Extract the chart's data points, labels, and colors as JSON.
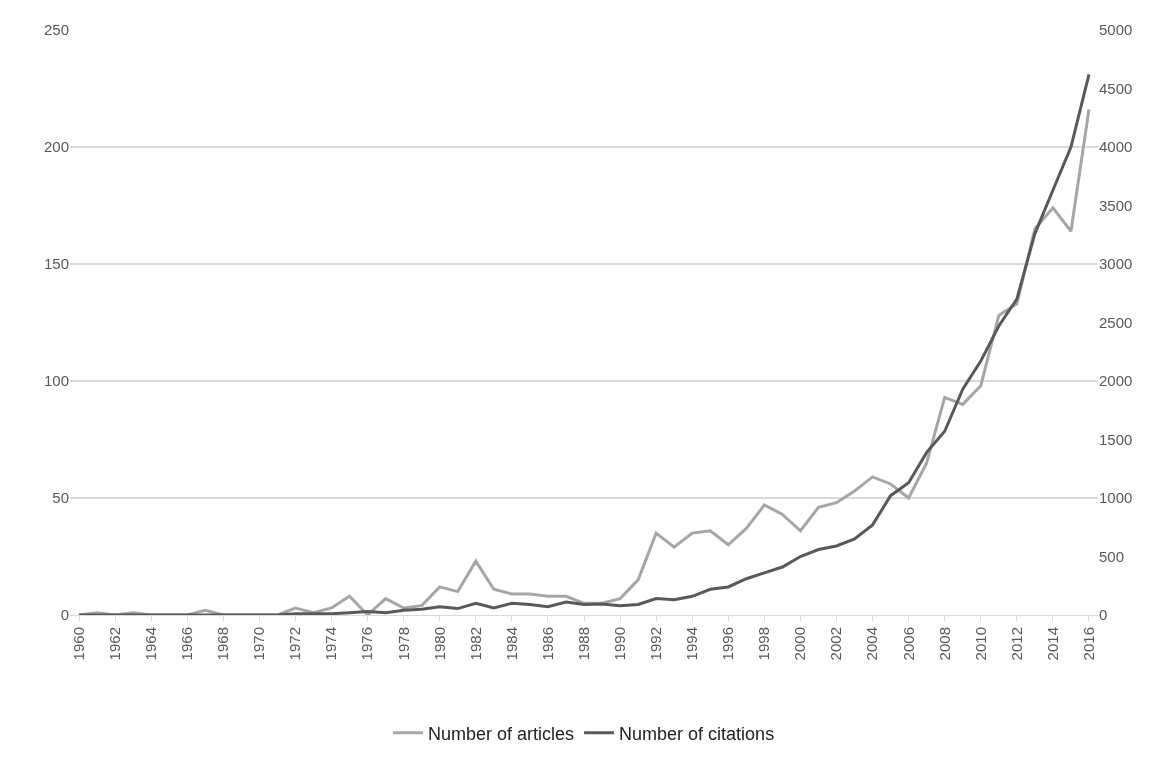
{
  "chart_data": {
    "type": "line",
    "x": [
      1960,
      1961,
      1962,
      1963,
      1964,
      1965,
      1966,
      1967,
      1968,
      1969,
      1970,
      1971,
      1972,
      1973,
      1974,
      1975,
      1976,
      1977,
      1978,
      1979,
      1980,
      1981,
      1982,
      1983,
      1984,
      1985,
      1986,
      1987,
      1988,
      1989,
      1990,
      1991,
      1992,
      1993,
      1994,
      1995,
      1996,
      1997,
      1998,
      1999,
      2000,
      2001,
      2002,
      2003,
      2004,
      2005,
      2006,
      2007,
      2008,
      2009,
      2010,
      2011,
      2012,
      2013,
      2014,
      2015,
      2016
    ],
    "series": [
      {
        "name": "Number of articles",
        "color": "#a6a6a6",
        "values": [
          0,
          1,
          0,
          1,
          0,
          0,
          0,
          2,
          0,
          0,
          0,
          0,
          3,
          1,
          3,
          8,
          0,
          7,
          3,
          4,
          12,
          10,
          23,
          11,
          9,
          9,
          8,
          8,
          5,
          5,
          7,
          15,
          35,
          29,
          35,
          36,
          30,
          37,
          47,
          43,
          36,
          46,
          48,
          53,
          59,
          56,
          50,
          65,
          93,
          90,
          98,
          128,
          133,
          165,
          174,
          164,
          216
        ]
      },
      {
        "name": "Number of citations",
        "color": "#595959",
        "axis": "y2",
        "values": [
          0,
          0,
          0,
          0,
          0,
          0,
          0,
          0,
          0,
          0,
          0,
          0,
          10,
          10,
          10,
          20,
          30,
          20,
          40,
          50,
          70,
          55,
          100,
          60,
          100,
          90,
          70,
          110,
          90,
          95,
          80,
          90,
          140,
          130,
          160,
          220,
          240,
          310,
          360,
          410,
          500,
          560,
          590,
          650,
          770,
          1020,
          1130,
          1390,
          1570,
          1930,
          2170,
          2470,
          2700,
          3260,
          3630,
          4000,
          4620
        ]
      }
    ],
    "xlim": [
      1959.5,
      2016.5
    ],
    "xticks": [
      1960,
      1962,
      1964,
      1966,
      1968,
      1970,
      1972,
      1974,
      1976,
      1978,
      1980,
      1982,
      1984,
      1986,
      1988,
      1990,
      1992,
      1994,
      1996,
      1998,
      2000,
      2002,
      2004,
      2006,
      2008,
      2010,
      2012,
      2014,
      2016
    ],
    "ylim": [
      0,
      250
    ],
    "yticks": [
      0,
      50,
      100,
      150,
      200,
      250
    ],
    "y2lim": [
      0,
      5000
    ],
    "y2ticks": [
      0,
      500,
      1000,
      1500,
      2000,
      2500,
      3000,
      3500,
      4000,
      4500,
      5000
    ],
    "grid": "y",
    "legend": "bottom",
    "marker": "none",
    "line_style": "solid"
  }
}
